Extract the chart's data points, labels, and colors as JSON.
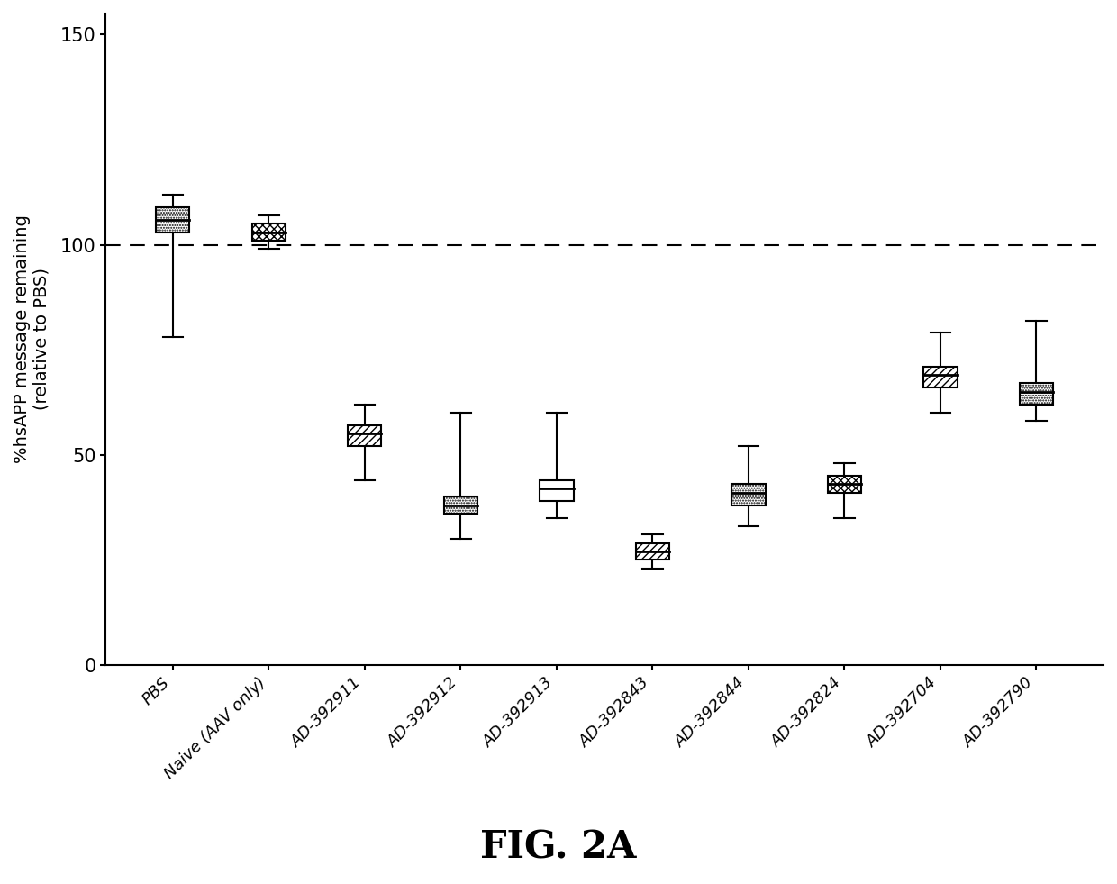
{
  "categories": [
    "PBS",
    "Naive (AAV only)",
    "AD-392911",
    "AD-392912",
    "AD-392913",
    "AD-392843",
    "AD-392844",
    "AD-392824",
    "AD-392704",
    "AD-392790"
  ],
  "boxes": [
    {
      "q1": 103,
      "median": 106,
      "q3": 109,
      "whisker_low": 78,
      "whisker_high": 112,
      "hatch": "......"
    },
    {
      "q1": 101,
      "median": 103,
      "q3": 105,
      "whisker_low": 99,
      "whisker_high": 107,
      "hatch": "xxxx"
    },
    {
      "q1": 52,
      "median": 55,
      "q3": 57,
      "whisker_low": 44,
      "whisker_high": 62,
      "hatch": "////"
    },
    {
      "q1": 36,
      "median": 38,
      "q3": 40,
      "whisker_low": 30,
      "whisker_high": 60,
      "hatch": "......"
    },
    {
      "q1": 39,
      "median": 42,
      "q3": 44,
      "whisker_low": 35,
      "whisker_high": 60,
      "hatch": ""
    },
    {
      "q1": 25,
      "median": 27,
      "q3": 29,
      "whisker_low": 23,
      "whisker_high": 31,
      "hatch": "////"
    },
    {
      "q1": 38,
      "median": 41,
      "q3": 43,
      "whisker_low": 33,
      "whisker_high": 52,
      "hatch": "......"
    },
    {
      "q1": 41,
      "median": 43,
      "q3": 45,
      "whisker_low": 35,
      "whisker_high": 48,
      "hatch": "xxxx"
    },
    {
      "q1": 66,
      "median": 69,
      "q3": 71,
      "whisker_low": 60,
      "whisker_high": 79,
      "hatch": "////"
    },
    {
      "q1": 62,
      "median": 65,
      "q3": 67,
      "whisker_low": 58,
      "whisker_high": 82,
      "hatch": "......"
    }
  ],
  "ylabel": "%hsAPP message remaining\n(relative to PBS)",
  "ylim": [
    0,
    155
  ],
  "yticks": [
    0,
    50,
    100,
    150
  ],
  "dashed_line_y": 100,
  "figure_label": "FIG. 2A",
  "background_color": "#ffffff",
  "linewidth": 1.5,
  "box_width": 0.35
}
